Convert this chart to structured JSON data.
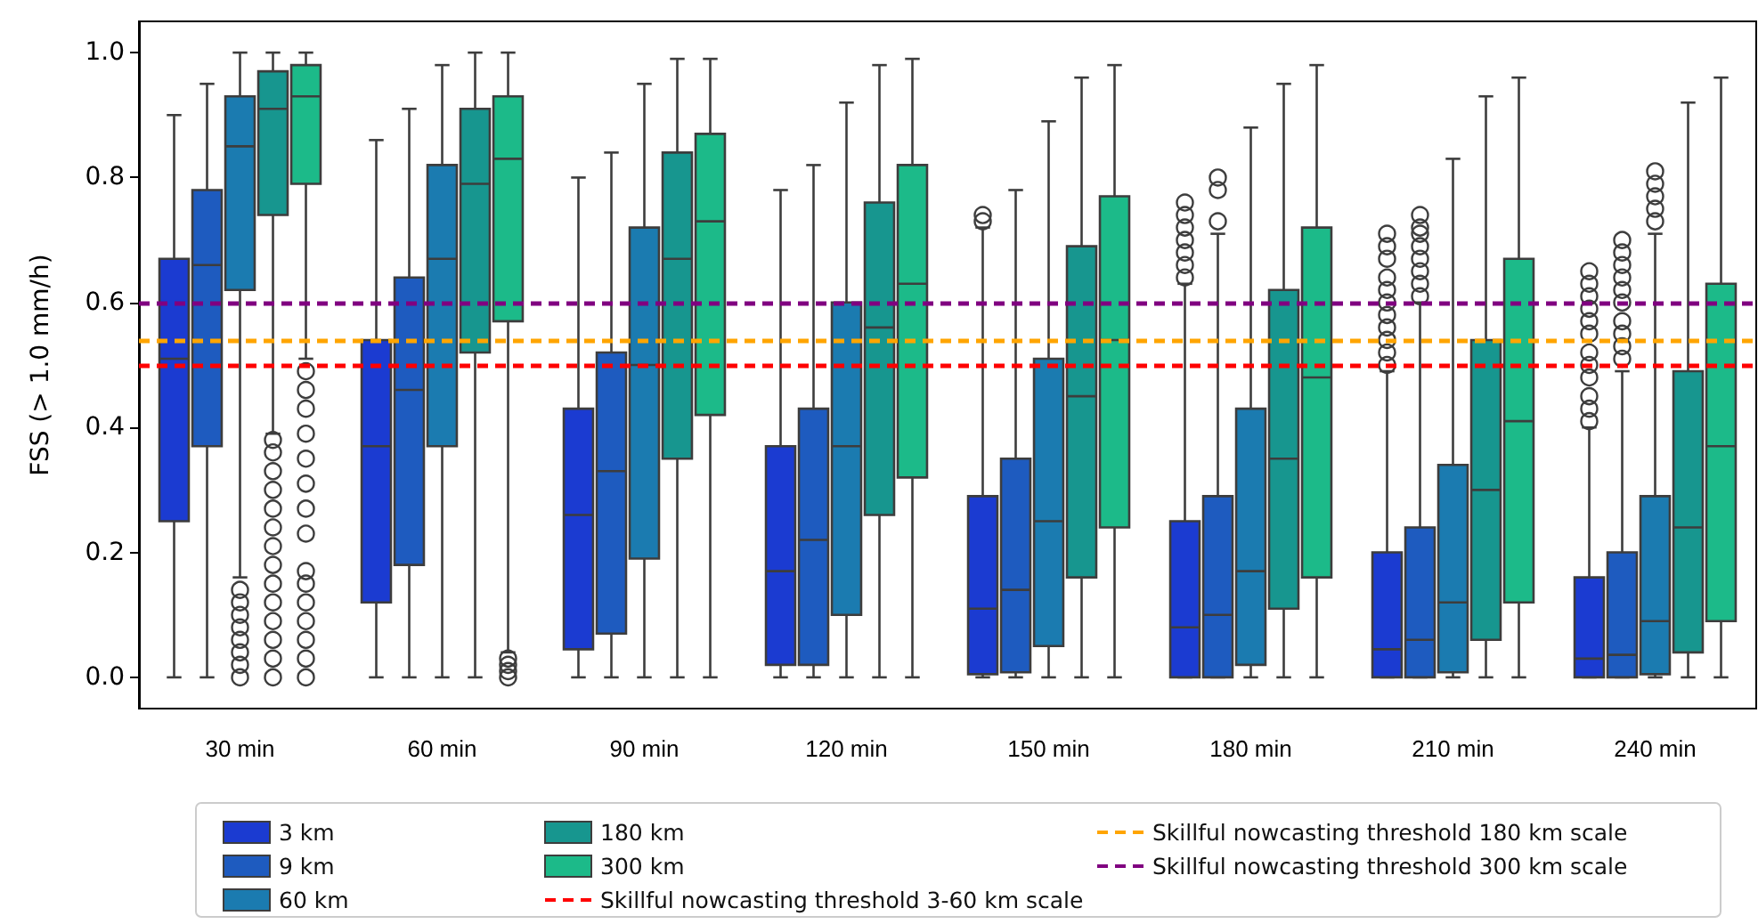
{
  "chart_data": {
    "type": "box",
    "ylabel": "FSS (> 1.0 mm/h)",
    "categories": [
      "30 min",
      "60 min",
      "90 min",
      "120 min",
      "150 min",
      "180 min",
      "210 min",
      "240 min"
    ],
    "ylim": [
      -0.05,
      1.05
    ],
    "yticks": [
      {
        "value": 0,
        "label": "0.0"
      },
      {
        "value": 0.2,
        "label": "0.2"
      },
      {
        "value": 0.4,
        "label": "0.4"
      },
      {
        "value": 0.6,
        "label": "0.6"
      },
      {
        "value": 0.8,
        "label": "0.8"
      },
      {
        "value": 1,
        "label": "1.0"
      }
    ],
    "grid": false,
    "legend": "bottom",
    "marker": "circle",
    "series": [
      {
        "name": "3 km",
        "color": "#1b3bd1",
        "boxes": [
          {
            "low": 0,
            "q1": 0.25,
            "median": 0.51,
            "q3": 0.67,
            "high": 0.9
          },
          {
            "low": 0,
            "q1": 0.12,
            "median": 0.37,
            "q3": 0.54,
            "high": 0.86
          },
          {
            "low": 0,
            "q1": 0.045,
            "median": 0.26,
            "q3": 0.43,
            "high": 0.8
          },
          {
            "low": 0,
            "q1": 0.02,
            "median": 0.17,
            "q3": 0.37,
            "high": 0.78
          },
          {
            "low": 0,
            "q1": 0.005,
            "median": 0.11,
            "q3": 0.29,
            "high": 0.72,
            "outliers": [
              0.73,
              0.74
            ]
          },
          {
            "low": 0,
            "q1": 0,
            "median": 0.08,
            "q3": 0.25,
            "high": 0.63,
            "outliers": [
              0.64,
              0.66,
              0.68,
              0.7,
              0.72,
              0.74,
              0.76
            ]
          },
          {
            "low": 0,
            "q1": 0,
            "median": 0.045,
            "q3": 0.2,
            "high": 0.49,
            "outliers": [
              0.5,
              0.52,
              0.54,
              0.56,
              0.58,
              0.6,
              0.62,
              0.64,
              0.67,
              0.69,
              0.71
            ]
          },
          {
            "low": 0,
            "q1": 0,
            "median": 0.03,
            "q3": 0.16,
            "high": 0.4,
            "outliers": [
              0.41,
              0.43,
              0.45,
              0.48,
              0.5,
              0.52,
              0.55,
              0.57,
              0.59,
              0.61,
              0.63,
              0.65
            ]
          }
        ]
      },
      {
        "name": "9 km",
        "color": "#1e5bbf",
        "boxes": [
          {
            "low": 0,
            "q1": 0.37,
            "median": 0.66,
            "q3": 0.78,
            "high": 0.95
          },
          {
            "low": 0,
            "q1": 0.18,
            "median": 0.46,
            "q3": 0.64,
            "high": 0.91
          },
          {
            "low": 0,
            "q1": 0.07,
            "median": 0.33,
            "q3": 0.52,
            "high": 0.84
          },
          {
            "low": 0,
            "q1": 0.02,
            "median": 0.22,
            "q3": 0.43,
            "high": 0.82
          },
          {
            "low": 0,
            "q1": 0.008,
            "median": 0.14,
            "q3": 0.35,
            "high": 0.78
          },
          {
            "low": 0,
            "q1": 0,
            "median": 0.1,
            "q3": 0.29,
            "high": 0.71,
            "outliers": [
              0.73,
              0.78,
              0.8
            ]
          },
          {
            "low": 0,
            "q1": 0,
            "median": 0.06,
            "q3": 0.24,
            "high": 0.6,
            "outliers": [
              0.61,
              0.63,
              0.65,
              0.67,
              0.69,
              0.71,
              0.72,
              0.74
            ]
          },
          {
            "low": 0,
            "q1": 0,
            "median": 0.036,
            "q3": 0.2,
            "high": 0.49,
            "outliers": [
              0.51,
              0.53,
              0.55,
              0.57,
              0.6,
              0.62,
              0.64,
              0.66,
              0.68,
              0.7
            ]
          }
        ]
      },
      {
        "name": "60 km",
        "color": "#1b7bb0",
        "boxes": [
          {
            "low": 0.16,
            "q1": 0.62,
            "median": 0.85,
            "q3": 0.93,
            "high": 1,
            "outliers": [
              0,
              0.02,
              0.04,
              0.06,
              0.08,
              0.1,
              0.12,
              0.14
            ]
          },
          {
            "low": 0,
            "q1": 0.37,
            "median": 0.67,
            "q3": 0.82,
            "high": 0.98
          },
          {
            "low": 0,
            "q1": 0.19,
            "median": 0.5,
            "q3": 0.72,
            "high": 0.95
          },
          {
            "low": 0,
            "q1": 0.1,
            "median": 0.37,
            "q3": 0.6,
            "high": 0.92
          },
          {
            "low": 0,
            "q1": 0.05,
            "median": 0.25,
            "q3": 0.51,
            "high": 0.89
          },
          {
            "low": 0,
            "q1": 0.02,
            "median": 0.17,
            "q3": 0.43,
            "high": 0.88
          },
          {
            "low": 0,
            "q1": 0.008,
            "median": 0.12,
            "q3": 0.34,
            "high": 0.83
          },
          {
            "low": 0,
            "q1": 0.005,
            "median": 0.09,
            "q3": 0.29,
            "high": 0.71,
            "outliers": [
              0.73,
              0.75,
              0.77,
              0.79,
              0.81
            ]
          }
        ]
      },
      {
        "name": "180 km",
        "color": "#17968f",
        "boxes": [
          {
            "low": 0.39,
            "q1": 0.74,
            "median": 0.91,
            "q3": 0.97,
            "high": 1,
            "outliers": [
              0,
              0.03,
              0.06,
              0.09,
              0.12,
              0.15,
              0.18,
              0.21,
              0.24,
              0.27,
              0.3,
              0.33,
              0.36,
              0.38
            ]
          },
          {
            "low": 0,
            "q1": 0.52,
            "median": 0.79,
            "q3": 0.91,
            "high": 1
          },
          {
            "low": 0,
            "q1": 0.35,
            "median": 0.67,
            "q3": 0.84,
            "high": 0.99
          },
          {
            "low": 0,
            "q1": 0.26,
            "median": 0.56,
            "q3": 0.76,
            "high": 0.98
          },
          {
            "low": 0,
            "q1": 0.16,
            "median": 0.45,
            "q3": 0.69,
            "high": 0.96
          },
          {
            "low": 0,
            "q1": 0.11,
            "median": 0.35,
            "q3": 0.62,
            "high": 0.95
          },
          {
            "low": 0,
            "q1": 0.06,
            "median": 0.3,
            "q3": 0.54,
            "high": 0.93
          },
          {
            "low": 0,
            "q1": 0.04,
            "median": 0.24,
            "q3": 0.49,
            "high": 0.92
          }
        ]
      },
      {
        "name": "300 km",
        "color": "#1cba89",
        "boxes": [
          {
            "low": 0.51,
            "q1": 0.79,
            "median": 0.93,
            "q3": 0.98,
            "high": 1,
            "outliers": [
              0,
              0.03,
              0.06,
              0.09,
              0.12,
              0.15,
              0.17,
              0.23,
              0.27,
              0.31,
              0.35,
              0.39,
              0.43,
              0.46,
              0.49
            ]
          },
          {
            "low": 0.04,
            "q1": 0.57,
            "median": 0.83,
            "q3": 0.93,
            "high": 1,
            "outliers": [
              0,
              0.01,
              0.02,
              0.03
            ]
          },
          {
            "low": 0,
            "q1": 0.42,
            "median": 0.73,
            "q3": 0.87,
            "high": 0.99
          },
          {
            "low": 0,
            "q1": 0.32,
            "median": 0.63,
            "q3": 0.82,
            "high": 0.99
          },
          {
            "low": 0,
            "q1": 0.24,
            "median": 0.54,
            "q3": 0.77,
            "high": 0.98
          },
          {
            "low": 0,
            "q1": 0.16,
            "median": 0.48,
            "q3": 0.72,
            "high": 0.98
          },
          {
            "low": 0,
            "q1": 0.12,
            "median": 0.41,
            "q3": 0.67,
            "high": 0.96
          },
          {
            "low": 0,
            "q1": 0.09,
            "median": 0.37,
            "q3": 0.63,
            "high": 0.96
          }
        ]
      }
    ],
    "ref_lines": [
      {
        "axis": "y",
        "value": 0.5,
        "label": "Skillful nowcasting threshold 3-60 km scale",
        "color": "#ff0000",
        "line_style": "dashed"
      },
      {
        "axis": "y",
        "value": 0.54,
        "label": "Skillful nowcasting threshold 180 km scale",
        "color": "#ffa500",
        "line_style": "dashed"
      },
      {
        "axis": "y",
        "value": 0.6,
        "label": "Skillful nowcasting threshold 300 km scale",
        "color": "#800080",
        "line_style": "dashed"
      }
    ]
  }
}
